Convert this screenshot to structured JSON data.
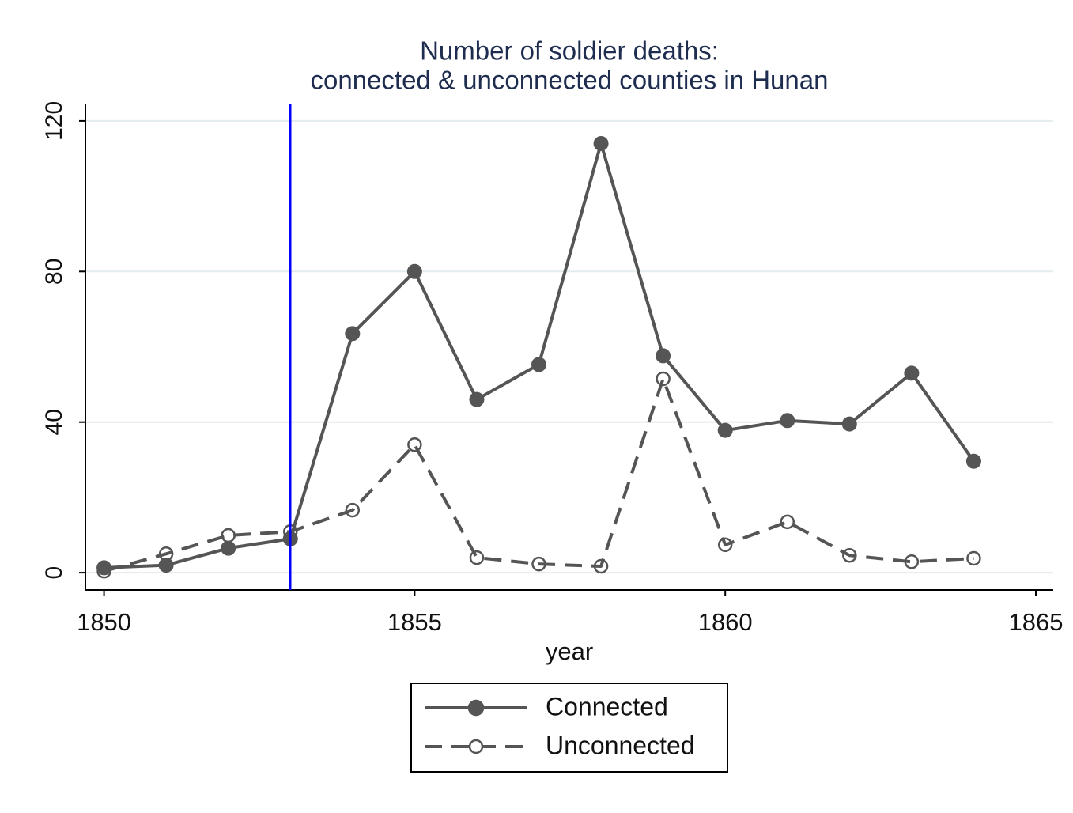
{
  "chart_data": {
    "type": "line",
    "title": [
      "Number of soldier deaths:",
      "connected & unconnected counties in Hunan"
    ],
    "x_label": "year",
    "x": [
      1850,
      1851,
      1852,
      1853,
      1854,
      1855,
      1856,
      1857,
      1858,
      1859,
      1860,
      1861,
      1862,
      1863,
      1864
    ],
    "series": [
      {
        "name": "Connected",
        "color": "#555555",
        "dash": false,
        "marker": "filled",
        "values": [
          1.3,
          2,
          6.5,
          9,
          63.5,
          80,
          46,
          55.3,
          114,
          57.6,
          37.8,
          40.4,
          39.5,
          53,
          29.6
        ]
      },
      {
        "name": "Unconnected",
        "color": "#555555",
        "dash": true,
        "marker": "hollow",
        "values": [
          0.4,
          5,
          9.9,
          10.9,
          16.6,
          34,
          4,
          2.3,
          1.7,
          51.5,
          7.4,
          13.5,
          4.6,
          2.9,
          3.8
        ]
      }
    ],
    "vline": 1853,
    "vline_color": "#0000ff",
    "xlim": [
      1849.7,
      1865.28
    ],
    "xticks": [
      1850,
      1855,
      1860,
      1865
    ],
    "ylim": [
      -4.6,
      124.6
    ],
    "yticks": [
      0,
      40,
      80,
      120
    ],
    "grid": true
  }
}
